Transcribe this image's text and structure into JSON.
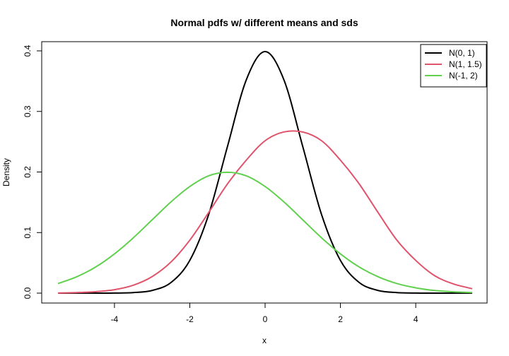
{
  "chart_data": {
    "type": "line",
    "title": "Normal pdfs w/ different means and sds",
    "xlabel": "x",
    "ylabel": "Density",
    "xlim": [
      -5.5,
      5.5
    ],
    "ylim": [
      0,
      0.4
    ],
    "x_ticks": [
      -4,
      -2,
      0,
      2,
      4
    ],
    "x_tick_labels": [
      "-4",
      "-2",
      "0",
      "2",
      "4"
    ],
    "y_ticks": [
      0.0,
      0.1,
      0.2,
      0.3,
      0.4
    ],
    "y_tick_labels": [
      "0.0",
      "0.1",
      "0.2",
      "0.3",
      "0.4"
    ],
    "grid": false,
    "legend_position": "top-right",
    "x": [
      -5.5,
      -5.0,
      -4.5,
      -4.0,
      -3.5,
      -3.0,
      -2.5,
      -2.0,
      -1.5,
      -1.0,
      -0.5,
      0.0,
      0.5,
      1.0,
      1.5,
      2.0,
      2.5,
      3.0,
      3.5,
      4.0,
      4.5,
      5.0,
      5.5
    ],
    "series": [
      {
        "name": "N(0, 1)",
        "color": "#000000",
        "values": [
          0.0,
          0.0,
          0.0,
          0.0001,
          0.0009,
          0.0044,
          0.0175,
          0.054,
          0.1295,
          0.242,
          0.3521,
          0.3989,
          0.3521,
          0.242,
          0.1295,
          0.054,
          0.0175,
          0.0044,
          0.0009,
          0.0001,
          0.0,
          0.0,
          0.0
        ]
      },
      {
        "name": "N(1, 1.5)",
        "color": "#DF536B",
        "values": [
          0.0002,
          0.0009,
          0.0024,
          0.0057,
          0.0131,
          0.0273,
          0.0514,
          0.0874,
          0.133,
          0.1802,
          0.2195,
          0.2516,
          0.2661,
          0.266,
          0.2516,
          0.2195,
          0.1802,
          0.133,
          0.0874,
          0.054,
          0.0289,
          0.0152,
          0.0073
        ]
      },
      {
        "name": "N(-1, 2)",
        "color": "#61D04F",
        "values": [
          0.0158,
          0.027,
          0.0431,
          0.0648,
          0.0913,
          0.121,
          0.1506,
          0.176,
          0.1936,
          0.1995,
          0.1936,
          0.176,
          0.1506,
          0.121,
          0.0913,
          0.0648,
          0.0431,
          0.027,
          0.0158,
          0.0088,
          0.0044,
          0.0022,
          0.0009
        ]
      }
    ]
  }
}
